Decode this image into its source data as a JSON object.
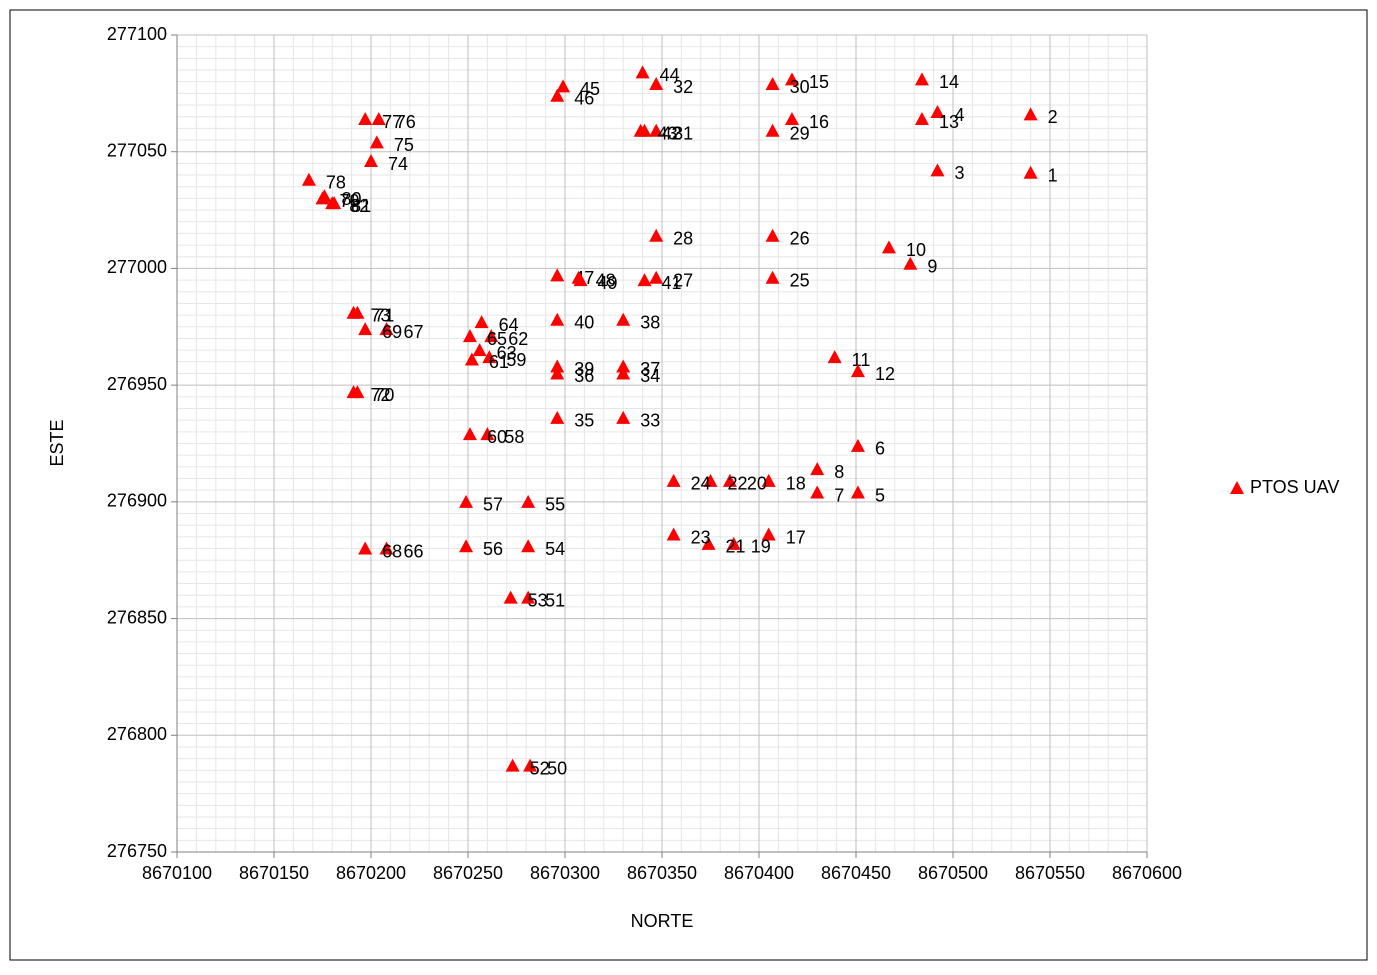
{
  "chart_data": {
    "type": "scatter",
    "x_label": "NORTE",
    "y_label": "ESTE",
    "xlim": [
      8670100,
      8670600
    ],
    "xticks": [
      8670100,
      8670150,
      8670200,
      8670250,
      8670300,
      8670350,
      8670400,
      8670450,
      8670500,
      8670550,
      8670600
    ],
    "ylim": [
      276750,
      277100
    ],
    "yticks": [
      276750,
      276800,
      276850,
      276900,
      276950,
      277000,
      277050,
      277100
    ],
    "grid": true,
    "minor_grid": {
      "x_divisions": 5,
      "y_divisions": 10
    },
    "legend": "right",
    "series": [
      {
        "name": "PTOS UAV",
        "color": "#ff0000",
        "labels": [
          "1",
          "2",
          "3",
          "4",
          "5",
          "6",
          "7",
          "8",
          "9",
          "10",
          "11",
          "12",
          "13",
          "14",
          "15",
          "16",
          "17",
          "18",
          "19",
          "20",
          "21",
          "22",
          "23",
          "24",
          "25",
          "26",
          "27",
          "28",
          "29",
          "30",
          "31",
          "32",
          "33",
          "34",
          "35",
          "36",
          "37",
          "38",
          "39",
          "40",
          "41",
          "42",
          "43",
          "44",
          "45",
          "46",
          "47",
          "48",
          "49",
          "50",
          "51",
          "52",
          "53",
          "54",
          "55",
          "56",
          "57",
          "58",
          "59",
          "60",
          "61",
          "62",
          "63",
          "64",
          "65",
          "66",
          "67",
          "68",
          "69",
          "70",
          "71",
          "72",
          "73",
          "74",
          "75",
          "76",
          "77",
          "78",
          "79",
          "80",
          "81",
          "82"
        ],
        "x": [
          8670540,
          8670540,
          8670492,
          8670492,
          8670451,
          8670451,
          8670430,
          8670430,
          8670478,
          8670467,
          8670439,
          8670451,
          8670484,
          8670484,
          8670417,
          8670417,
          8670405,
          8670405,
          8670387,
          8670385,
          8670374,
          8670375,
          8670356,
          8670356,
          8670407,
          8670407,
          8670347,
          8670347,
          8670407,
          8670407,
          8670347,
          8670347,
          8670330,
          8670330,
          8670296,
          8670296,
          8670330,
          8670330,
          8670296,
          8670296,
          8670341,
          8670341,
          8670339,
          8670340,
          8670299,
          8670296,
          8670296,
          8670307,
          8670308,
          8670282,
          8670281,
          8670273,
          8670272,
          8670281,
          8670281,
          8670249,
          8670249,
          8670260,
          8670261,
          8670251,
          8670252,
          8670262,
          8670256,
          8670257,
          8670251,
          8670208,
          8670208,
          8670197,
          8670197,
          8670193,
          8670193,
          8670191,
          8670191,
          8670200,
          8670203,
          8670204,
          8670197,
          8670168,
          8670175,
          8670176,
          8670181,
          8670180
        ],
        "values": [
          277041,
          277066,
          277042,
          277067,
          276904,
          276924,
          276904,
          276914,
          277002,
          277009,
          276962,
          276956,
          277064,
          277081,
          277081,
          277064,
          276886,
          276909,
          276882,
          276909,
          276882,
          276909,
          276886,
          276909,
          276996,
          277014,
          276996,
          277014,
          277059,
          277079,
          277059,
          277079,
          276936,
          276955,
          276936,
          276955,
          276958,
          276978,
          276958,
          276978,
          276995,
          277059,
          277059,
          277084,
          277078,
          277074,
          276997,
          276996,
          276995,
          276787,
          276859,
          276787,
          276859,
          276881,
          276900,
          276881,
          276900,
          276929,
          276962,
          276929,
          276961,
          276971,
          276965,
          276977,
          276971,
          276880,
          276974,
          276880,
          276974,
          276947,
          276981,
          276947,
          276981,
          277046,
          277054,
          277064,
          277064,
          277038,
          277030,
          277031,
          277028,
          277028
        ]
      }
    ]
  }
}
